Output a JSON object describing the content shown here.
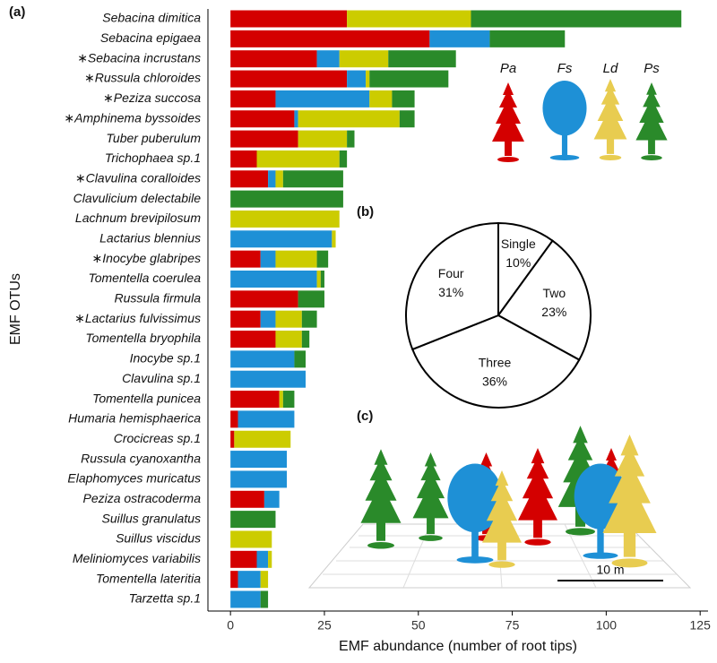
{
  "chart_data": [
    {
      "type": "stacked-barh",
      "panel_label": "(a)",
      "xlabel": "EMF abundance (number of root tips)",
      "ylabel": "EMF OTUs",
      "categories": [
        "Sebacina dimitica",
        "Sebacina epigaea",
        "∗Sebacina incrustans",
        "∗Russula chloroides",
        "∗Peziza succosa",
        "∗Amphinema byssoides",
        "Tuber puberulum",
        "Trichophaea sp.1",
        "∗Clavulina coralloides",
        "Clavulicium delectabile",
        "Lachnum brevipilosum",
        "Lactarius blennius",
        "∗Inocybe glabripes",
        "Tomentella coerulea",
        "Russula firmula",
        "∗Lactarius fulvissimus",
        "Tomentella bryophila",
        "Inocybe sp.1",
        "Clavulina sp.1",
        "Tomentella punicea",
        "Humaria hemisphaerica",
        "Crocicreas sp.1",
        "Russula cyanoxantha",
        "Elaphomyces muricatus",
        "Peziza ostracoderma",
        "Suillus granulatus",
        "Suillus viscidus",
        "Meliniomyces variabilis",
        "Tomentella lateritia",
        "Tarzetta sp.1"
      ],
      "series": [
        {
          "name": "Pa",
          "color": "#d40000",
          "values": [
            31,
            53,
            23,
            31,
            12,
            17,
            18,
            7,
            10,
            0,
            0,
            0,
            8,
            0,
            18,
            8,
            12,
            0,
            0,
            13,
            2,
            1,
            0,
            0,
            9,
            0,
            0,
            7,
            2,
            0
          ]
        },
        {
          "name": "Fs",
          "color": "#1e90d6",
          "values": [
            0,
            16,
            6,
            5,
            25,
            1,
            0,
            0,
            2,
            0,
            0,
            27,
            4,
            23,
            0,
            4,
            0,
            17,
            20,
            0,
            15,
            0,
            15,
            15,
            4,
            0,
            0,
            3,
            6,
            8
          ]
        },
        {
          "name": "Ld",
          "color": "#cccc00",
          "values": [
            33,
            0,
            13,
            1,
            6,
            27,
            13,
            22,
            2,
            0,
            29,
            1,
            11,
            1,
            0,
            7,
            7,
            0,
            0,
            1,
            0,
            15,
            0,
            0,
            0,
            0,
            11,
            1,
            2,
            0
          ]
        },
        {
          "name": "Ps",
          "color": "#2a8a2a",
          "values": [
            56,
            20,
            18,
            21,
            6,
            4,
            2,
            2,
            16,
            30,
            0,
            0,
            3,
            1,
            7,
            4,
            2,
            3,
            0,
            3,
            0,
            0,
            0,
            0,
            0,
            12,
            0,
            0,
            0,
            2
          ]
        }
      ],
      "xlim": [
        -6,
        127.1
      ],
      "xticks": [
        0,
        25,
        50,
        75,
        100,
        125
      ],
      "grid": false
    },
    {
      "type": "pie",
      "panel_label": "(b)",
      "categories": [
        "Single",
        "Two",
        "Three",
        "Four"
      ],
      "values": [
        10,
        23,
        36,
        31
      ],
      "value_labels": [
        "10%",
        "23%",
        "36%",
        "31%"
      ],
      "color": "#ffffff"
    }
  ],
  "panel_c": {
    "label": "(c)",
    "scale_label": "10 m"
  }
}
